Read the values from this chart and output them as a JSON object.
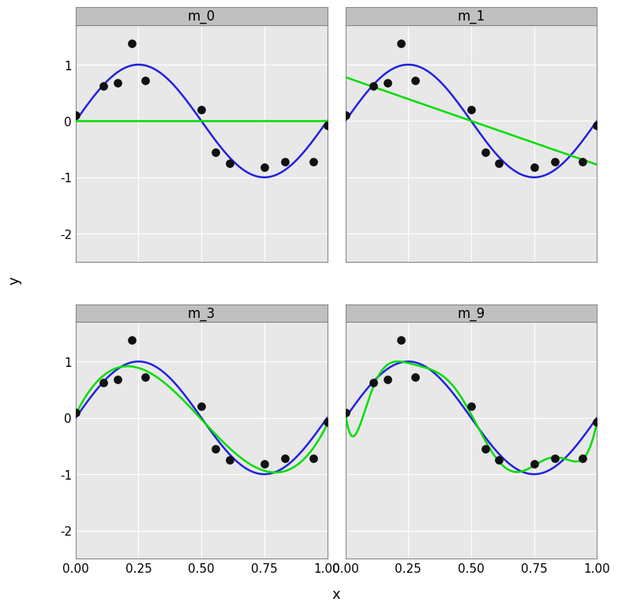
{
  "subplots": [
    "m_0",
    "m_1",
    "m_3",
    "m_9"
  ],
  "orders": [
    0,
    1,
    3,
    9
  ],
  "x_data": [
    0.0,
    0.111,
    0.167,
    0.222,
    0.278,
    0.5,
    0.556,
    0.611,
    0.75,
    0.833,
    0.944,
    1.0
  ],
  "y_data": [
    0.1,
    0.62,
    0.68,
    1.38,
    0.72,
    0.2,
    -0.55,
    -0.75,
    -0.82,
    -0.72,
    -0.72,
    -0.08
  ],
  "xlim": [
    0.0,
    1.0
  ],
  "ylim": [
    -2.5,
    1.7
  ],
  "yticks": [
    -2,
    -1,
    0,
    1
  ],
  "xticks": [
    0.0,
    0.25,
    0.5,
    0.75,
    1.0
  ],
  "xtick_labels": [
    "0.00",
    "0.25",
    "0.50",
    "0.75",
    "1.00"
  ],
  "xlabel": "x",
  "ylabel": "y",
  "blue_color": "#2222DD",
  "green_color": "#00DD00",
  "dot_color": "#111111",
  "bg_color": "#E8E8E8",
  "panel_header_color": "#C0C0C0",
  "panel_header_line_color": "#888888",
  "grid_color": "#FFFFFF",
  "outer_bg": "#FFFFFF",
  "dot_size": 45,
  "line_width": 1.8,
  "header_fontsize": 12,
  "axis_fontsize": 11,
  "label_fontsize": 13
}
